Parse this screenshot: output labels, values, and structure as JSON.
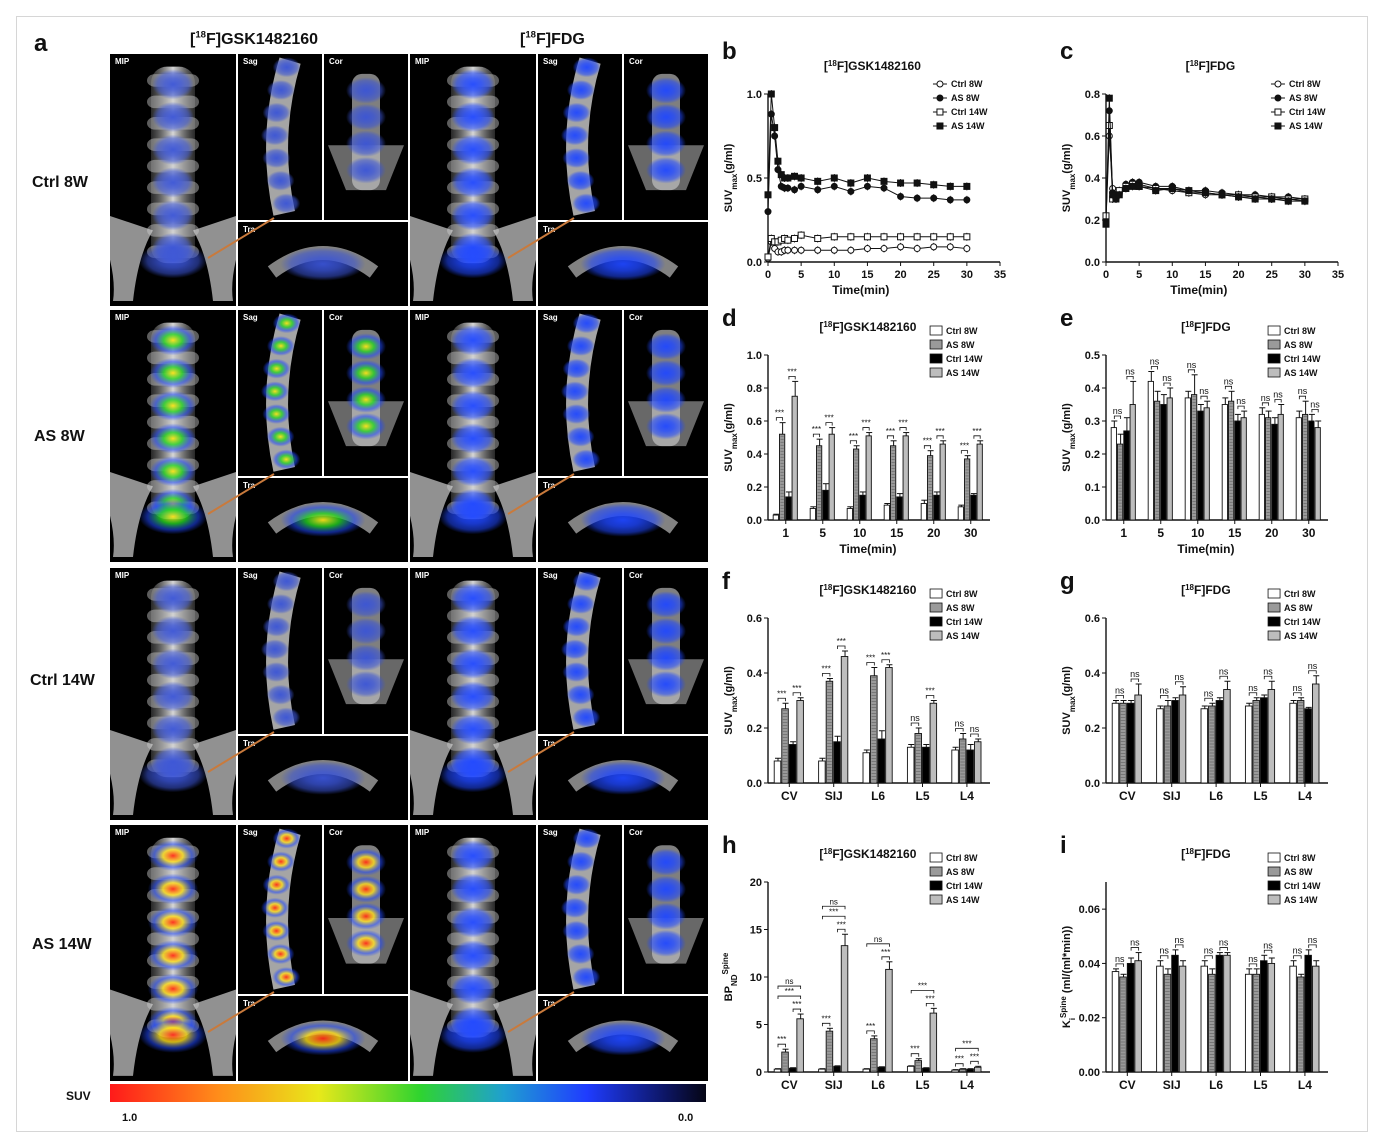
{
  "letters": {
    "a": "a",
    "b": "b",
    "c": "c",
    "d": "d",
    "e": "e",
    "f": "f",
    "g": "g",
    "h": "h",
    "i": "i"
  },
  "tracers": {
    "gsk": "[18F]GSK1482160",
    "fdg": "[18F]FDG"
  },
  "groups": [
    "Ctrl 8W",
    "AS 8W",
    "Ctrl 14W",
    "AS 14W"
  ],
  "views": {
    "mip": "MIP",
    "sag": "Sag",
    "cor": "Cor",
    "tra": "Tra"
  },
  "colorbar": {
    "label": "SUV",
    "min": "1.0",
    "max": "0.0"
  },
  "colors": {
    "orange_arrow": "#c97a3c",
    "hot": "#ff2a1a",
    "warm": "#ffe11a",
    "mid": "#24d424",
    "cool": "#1f47ff",
    "bone": "#d9d9d9"
  },
  "activity": {
    "gsk": [
      0.15,
      0.55,
      0.2,
      0.85
    ],
    "fdg": [
      0.3,
      0.35,
      0.4,
      0.35
    ]
  },
  "chart_data": [
    {
      "id": "b",
      "type": "line",
      "title": "[18F]GSK1482160",
      "xlabel": "Time(min)",
      "ylabel": "SUVmax(g/ml)",
      "xlim": [
        0,
        35
      ],
      "ylim": [
        0,
        1.0
      ],
      "xticks": [
        0,
        5,
        10,
        15,
        20,
        25,
        30,
        35
      ],
      "yticks": [
        0.0,
        0.5,
        1.0
      ],
      "legend_position": "top-right",
      "series": [
        {
          "name": "Ctrl 8W",
          "marker": "circle-open",
          "x": [
            0,
            0.5,
            1,
            1.5,
            2,
            2.5,
            3,
            4,
            5,
            7.5,
            10,
            12.5,
            15,
            17.5,
            20,
            22.5,
            25,
            27.5,
            30
          ],
          "y": [
            0.02,
            0.12,
            0.08,
            0.06,
            0.06,
            0.07,
            0.07,
            0.07,
            0.07,
            0.07,
            0.07,
            0.07,
            0.08,
            0.08,
            0.09,
            0.08,
            0.09,
            0.09,
            0.08
          ]
        },
        {
          "name": "AS 8W",
          "marker": "circle-filled",
          "x": [
            0,
            0.5,
            1,
            1.5,
            2,
            2.5,
            3,
            4,
            5,
            7.5,
            10,
            12.5,
            15,
            17.5,
            20,
            22.5,
            25,
            27.5,
            30
          ],
          "y": [
            0.3,
            0.88,
            0.75,
            0.55,
            0.45,
            0.44,
            0.44,
            0.43,
            0.45,
            0.43,
            0.45,
            0.42,
            0.45,
            0.44,
            0.39,
            0.38,
            0.38,
            0.37,
            0.37
          ]
        },
        {
          "name": "Ctrl 14W",
          "marker": "square-open",
          "x": [
            0,
            0.5,
            1,
            1.5,
            2,
            2.5,
            3,
            4,
            5,
            7.5,
            10,
            12.5,
            15,
            17.5,
            20,
            22.5,
            25,
            27.5,
            30
          ],
          "y": [
            0.03,
            0.14,
            0.12,
            0.12,
            0.13,
            0.14,
            0.13,
            0.14,
            0.16,
            0.14,
            0.15,
            0.15,
            0.15,
            0.15,
            0.15,
            0.15,
            0.15,
            0.15,
            0.15
          ]
        },
        {
          "name": "AS 14W",
          "marker": "square-filled",
          "x": [
            0,
            0.5,
            1,
            1.5,
            2,
            2.5,
            3,
            4,
            5,
            7.5,
            10,
            12.5,
            15,
            17.5,
            20,
            22.5,
            25,
            27.5,
            30
          ],
          "y": [
            0.4,
            1.0,
            0.8,
            0.6,
            0.52,
            0.5,
            0.5,
            0.51,
            0.5,
            0.48,
            0.5,
            0.47,
            0.5,
            0.48,
            0.47,
            0.47,
            0.46,
            0.45,
            0.45
          ]
        }
      ]
    },
    {
      "id": "c",
      "type": "line",
      "title": "[18F]FDG",
      "xlabel": "Time(min)",
      "ylabel": "SUVmax(g/ml)",
      "xlim": [
        0,
        35
      ],
      "ylim": [
        0,
        0.8
      ],
      "xticks": [
        0,
        5,
        10,
        15,
        20,
        25,
        30,
        35
      ],
      "yticks": [
        0.0,
        0.2,
        0.4,
        0.6,
        0.8
      ],
      "legend_position": "top-right",
      "series": [
        {
          "name": "Ctrl 8W",
          "marker": "circle-open",
          "x": [
            0,
            0.5,
            1,
            1.5,
            2,
            3,
            4,
            5,
            7.5,
            10,
            12.5,
            15,
            17.5,
            20,
            22.5,
            25,
            27.5,
            30
          ],
          "y": [
            0.2,
            0.6,
            0.35,
            0.3,
            0.32,
            0.36,
            0.37,
            0.37,
            0.35,
            0.34,
            0.33,
            0.32,
            0.32,
            0.31,
            0.31,
            0.3,
            0.3,
            0.29
          ]
        },
        {
          "name": "AS 8W",
          "marker": "circle-filled",
          "x": [
            0,
            0.5,
            1,
            1.5,
            2,
            3,
            4,
            5,
            7.5,
            10,
            12.5,
            15,
            17.5,
            20,
            22.5,
            25,
            27.5,
            30
          ],
          "y": [
            0.2,
            0.72,
            0.33,
            0.3,
            0.33,
            0.37,
            0.38,
            0.38,
            0.36,
            0.36,
            0.34,
            0.34,
            0.33,
            0.32,
            0.32,
            0.31,
            0.31,
            0.3
          ]
        },
        {
          "name": "Ctrl 14W",
          "marker": "square-open",
          "x": [
            0,
            0.5,
            1,
            1.5,
            2,
            3,
            4,
            5,
            7.5,
            10,
            12.5,
            15,
            17.5,
            20,
            22.5,
            25,
            27.5,
            30
          ],
          "y": [
            0.22,
            0.65,
            0.3,
            0.31,
            0.34,
            0.36,
            0.37,
            0.36,
            0.35,
            0.35,
            0.33,
            0.33,
            0.32,
            0.32,
            0.31,
            0.31,
            0.3,
            0.3
          ]
        },
        {
          "name": "AS 14W",
          "marker": "square-filled",
          "x": [
            0,
            0.5,
            1,
            1.5,
            2,
            3,
            4,
            5,
            7.5,
            10,
            12.5,
            15,
            17.5,
            20,
            22.5,
            25,
            27.5,
            30
          ],
          "y": [
            0.18,
            0.78,
            0.32,
            0.3,
            0.32,
            0.35,
            0.36,
            0.36,
            0.34,
            0.35,
            0.34,
            0.33,
            0.32,
            0.31,
            0.3,
            0.3,
            0.29,
            0.29
          ]
        }
      ]
    },
    {
      "id": "d",
      "type": "bar",
      "title": "[18F]GSK1482160",
      "xlabel": "Time(min)",
      "ylabel": "SUVmax(g/ml)",
      "ylim": [
        0,
        1.0
      ],
      "yticks": [
        0.0,
        0.2,
        0.4,
        0.6,
        0.8,
        1.0
      ],
      "categories": [
        "1",
        "5",
        "10",
        "15",
        "20",
        "30"
      ],
      "legend_position": "top-right",
      "series": [
        {
          "name": "Ctrl 8W",
          "values": [
            0.03,
            0.07,
            0.07,
            0.09,
            0.1,
            0.08
          ],
          "errors": [
            0.005,
            0.01,
            0.01,
            0.01,
            0.02,
            0.01
          ]
        },
        {
          "name": "AS 8W",
          "values": [
            0.52,
            0.45,
            0.43,
            0.45,
            0.39,
            0.37
          ],
          "errors": [
            0.07,
            0.04,
            0.02,
            0.03,
            0.03,
            0.02
          ]
        },
        {
          "name": "Ctrl 14W",
          "values": [
            0.14,
            0.18,
            0.15,
            0.14,
            0.15,
            0.15
          ],
          "errors": [
            0.03,
            0.04,
            0.02,
            0.02,
            0.02,
            0.01
          ]
        },
        {
          "name": "AS 14W",
          "values": [
            0.75,
            0.52,
            0.51,
            0.51,
            0.46,
            0.46
          ],
          "errors": [
            0.09,
            0.04,
            0.02,
            0.02,
            0.02,
            0.02
          ]
        }
      ],
      "annotations": [
        "***",
        "***",
        "***",
        "***",
        "***",
        "***",
        "***",
        "***",
        "***",
        "***",
        "***",
        "***"
      ]
    },
    {
      "id": "e",
      "type": "bar",
      "title": "[18F]FDG",
      "xlabel": "Time(min)",
      "ylabel": "SUVmax(g/ml)",
      "ylim": [
        0,
        0.5
      ],
      "yticks": [
        0.0,
        0.1,
        0.2,
        0.3,
        0.4,
        0.5
      ],
      "categories": [
        "1",
        "5",
        "10",
        "15",
        "20",
        "30"
      ],
      "legend_position": "top-right",
      "series": [
        {
          "name": "Ctrl 8W",
          "values": [
            0.28,
            0.42,
            0.37,
            0.35,
            0.32,
            0.31
          ],
          "errors": [
            0.02,
            0.03,
            0.02,
            0.02,
            0.02,
            0.02
          ]
        },
        {
          "name": "AS 8W",
          "values": [
            0.23,
            0.36,
            0.38,
            0.36,
            0.31,
            0.32
          ],
          "errors": [
            0.03,
            0.03,
            0.06,
            0.03,
            0.02,
            0.04
          ]
        },
        {
          "name": "Ctrl 14W",
          "values": [
            0.27,
            0.35,
            0.33,
            0.3,
            0.29,
            0.3
          ],
          "errors": [
            0.04,
            0.03,
            0.02,
            0.02,
            0.02,
            0.02
          ]
        },
        {
          "name": "AS 14W",
          "values": [
            0.35,
            0.37,
            0.34,
            0.31,
            0.32,
            0.28
          ],
          "errors": [
            0.07,
            0.03,
            0.02,
            0.02,
            0.03,
            0.02
          ]
        }
      ],
      "annotations": [
        "ns",
        "ns",
        "ns",
        "ns",
        "ns",
        "ns",
        "ns",
        "ns",
        "ns",
        "ns",
        "ns",
        "ns"
      ]
    },
    {
      "id": "f",
      "type": "bar",
      "title": "[18F]GSK1482160",
      "xlabel": "",
      "ylabel": "SUVmax(g/ml)",
      "ylim": [
        0,
        0.6
      ],
      "yticks": [
        0.0,
        0.2,
        0.4,
        0.6
      ],
      "categories": [
        "CV",
        "SIJ",
        "L6",
        "L5",
        "L4"
      ],
      "legend_position": "top-right",
      "series": [
        {
          "name": "Ctrl 8W",
          "values": [
            0.08,
            0.08,
            0.11,
            0.13,
            0.12
          ],
          "errors": [
            0.01,
            0.01,
            0.01,
            0.01,
            0.01
          ]
        },
        {
          "name": "AS 8W",
          "values": [
            0.27,
            0.37,
            0.39,
            0.18,
            0.16
          ],
          "errors": [
            0.02,
            0.01,
            0.03,
            0.02,
            0.02
          ]
        },
        {
          "name": "Ctrl 14W",
          "values": [
            0.14,
            0.15,
            0.16,
            0.13,
            0.12
          ],
          "errors": [
            0.01,
            0.02,
            0.03,
            0.01,
            0.02
          ]
        },
        {
          "name": "AS 14W",
          "values": [
            0.3,
            0.46,
            0.42,
            0.29,
            0.15
          ],
          "errors": [
            0.01,
            0.02,
            0.01,
            0.01,
            0.01
          ]
        }
      ],
      "annotations": [
        "***",
        "***",
        "***",
        "***",
        "***",
        "***",
        "ns",
        "***",
        "ns",
        "ns"
      ]
    },
    {
      "id": "g",
      "type": "bar",
      "title": "[18F]FDG",
      "xlabel": "",
      "ylabel": "SUVmax(g/ml)",
      "ylim": [
        0,
        0.6
      ],
      "yticks": [
        0.0,
        0.2,
        0.4,
        0.6
      ],
      "categories": [
        "CV",
        "SIJ",
        "L6",
        "L5",
        "L4"
      ],
      "legend_position": "top-right",
      "series": [
        {
          "name": "Ctrl 8W",
          "values": [
            0.29,
            0.27,
            0.27,
            0.28,
            0.29
          ],
          "errors": [
            0.01,
            0.01,
            0.01,
            0.01,
            0.01
          ]
        },
        {
          "name": "AS 8W",
          "values": [
            0.29,
            0.28,
            0.28,
            0.3,
            0.3
          ],
          "errors": [
            0.01,
            0.02,
            0.01,
            0.01,
            0.01
          ]
        },
        {
          "name": "Ctrl 14W",
          "values": [
            0.29,
            0.3,
            0.3,
            0.31,
            0.27
          ],
          "errors": [
            0.01,
            0.01,
            0.01,
            0.01,
            0.005
          ]
        },
        {
          "name": "AS 14W",
          "values": [
            0.32,
            0.32,
            0.34,
            0.34,
            0.36
          ],
          "errors": [
            0.04,
            0.03,
            0.03,
            0.03,
            0.03
          ]
        }
      ],
      "annotations": [
        "ns",
        "ns",
        "ns",
        "ns",
        "ns",
        "ns",
        "ns",
        "ns",
        "ns",
        "ns"
      ]
    },
    {
      "id": "h",
      "type": "bar",
      "title": "[18F]GSK1482160",
      "xlabel": "",
      "ylabel": "BPND Spine",
      "ylim": [
        0,
        20
      ],
      "yticks": [
        0,
        5,
        10,
        15,
        20
      ],
      "categories": [
        "CV",
        "SIJ",
        "L6",
        "L5",
        "L4"
      ],
      "legend_position": "top-right",
      "series": [
        {
          "name": "Ctrl 8W",
          "values": [
            0.3,
            0.3,
            0.3,
            0.6,
            0.2
          ],
          "errors": [
            0.05,
            0.05,
            0.05,
            0.05,
            0.05
          ]
        },
        {
          "name": "AS 8W",
          "values": [
            2.1,
            4.3,
            3.5,
            1.2,
            0.3
          ],
          "errors": [
            0.3,
            0.3,
            0.3,
            0.2,
            0.05
          ]
        },
        {
          "name": "Ctrl 14W",
          "values": [
            0.4,
            0.6,
            0.5,
            0.4,
            0.3
          ],
          "errors": [
            0.05,
            0.05,
            0.05,
            0.05,
            0.05
          ]
        },
        {
          "name": "AS 14W",
          "values": [
            5.6,
            13.3,
            10.8,
            6.2,
            0.5
          ],
          "errors": [
            0.5,
            1.2,
            0.8,
            0.5,
            0.1
          ]
        }
      ],
      "annotations": [
        "***",
        "***",
        "***",
        "***",
        "***",
        "***",
        "***",
        "***",
        "***",
        "***",
        "***",
        "***",
        "ns",
        "***",
        "***",
        "ns",
        "ns"
      ]
    },
    {
      "id": "i",
      "type": "bar",
      "title": "[18F]FDG",
      "xlabel": "",
      "ylabel": "Ki Spine (ml/(ml*min))",
      "ylim": [
        0,
        0.07
      ],
      "yticks": [
        0.0,
        0.02,
        0.04,
        0.06
      ],
      "categories": [
        "CV",
        "SIJ",
        "L6",
        "L5",
        "L4"
      ],
      "legend_position": "top-right",
      "series": [
        {
          "name": "Ctrl 8W",
          "values": [
            0.037,
            0.039,
            0.039,
            0.036,
            0.039
          ],
          "errors": [
            0.001,
            0.002,
            0.002,
            0.002,
            0.002
          ]
        },
        {
          "name": "AS 8W",
          "values": [
            0.035,
            0.036,
            0.036,
            0.036,
            0.035
          ],
          "errors": [
            0.001,
            0.002,
            0.002,
            0.002,
            0.001
          ]
        },
        {
          "name": "Ctrl 14W",
          "values": [
            0.04,
            0.043,
            0.043,
            0.041,
            0.043
          ],
          "errors": [
            0.002,
            0.002,
            0.001,
            0.002,
            0.002
          ]
        },
        {
          "name": "AS 14W",
          "values": [
            0.041,
            0.039,
            0.043,
            0.04,
            0.039
          ],
          "errors": [
            0.003,
            0.002,
            0.001,
            0.002,
            0.002
          ]
        }
      ],
      "annotations": [
        "ns",
        "ns",
        "ns",
        "ns",
        "ns",
        "ns",
        "ns",
        "ns",
        "ns",
        "ns"
      ]
    }
  ]
}
